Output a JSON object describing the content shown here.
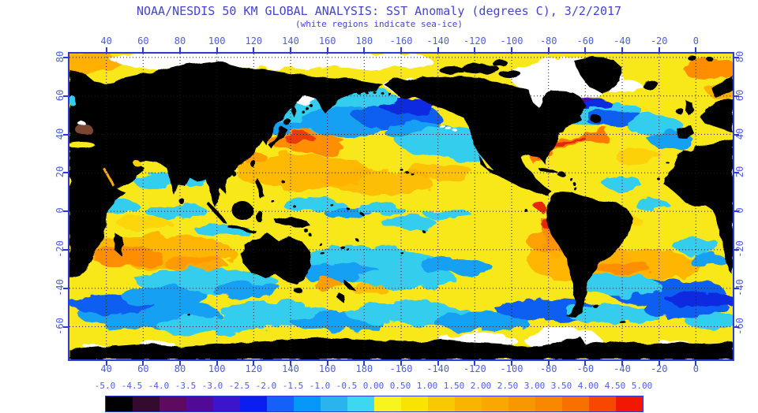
{
  "header": {
    "title": "NOAA/NESDIS 50 KM GLOBAL ANALYSIS: SST Anomaly (degrees C), 3/2/2017",
    "subtitle": "(white regions indicate sea-ice)"
  },
  "map_axes": {
    "lon_tick_labels": [
      "40",
      "60",
      "80",
      "100",
      "120",
      "140",
      "160",
      "180",
      "-160",
      "-140",
      "-120",
      "-100",
      "-80",
      "-60",
      "-40",
      "-20",
      "0"
    ],
    "lat_tick_labels": [
      "80",
      "60",
      "40",
      "20",
      "0",
      "-20",
      "-40",
      "-60"
    ]
  },
  "colorbar": {
    "tick_labels": [
      "-5.0",
      "-4.5",
      "-4.0",
      "-3.5",
      "-3.0",
      "-2.5",
      "-2.0",
      "-1.5",
      "-1.0",
      "-0.5",
      "0.00",
      "0.50",
      "1.00",
      "1.50",
      "2.00",
      "2.50",
      "3.00",
      "3.50",
      "4.00",
      "4.50",
      "5.00"
    ],
    "cell_colors": [
      "#000000",
      "#340a2e",
      "#5e0a5e",
      "#500a96",
      "#3c14cc",
      "#0a1ef0",
      "#1460f8",
      "#0698f8",
      "#2ab4ee",
      "#3cd8f0",
      "#f8f41e",
      "#f8e400",
      "#f8c800",
      "#f8b400",
      "#f8a800",
      "#f89800",
      "#f88800",
      "#f87000",
      "#f84800",
      "#f01800"
    ]
  },
  "palette": {
    "title_text": "#4444d0",
    "tick_text": "#4e5ede",
    "frame": "#2b3bd4",
    "land": "#000000",
    "sea_ice": "#ffffff",
    "ocean_base": "#f8e81a",
    "lake_brown": "#7b4632",
    "anomaly_cyan": "#35cdee",
    "anomaly_blue": "#0f5ef2",
    "anomaly_orange": "#ffb000",
    "anomaly_red": "#ee2810"
  }
}
